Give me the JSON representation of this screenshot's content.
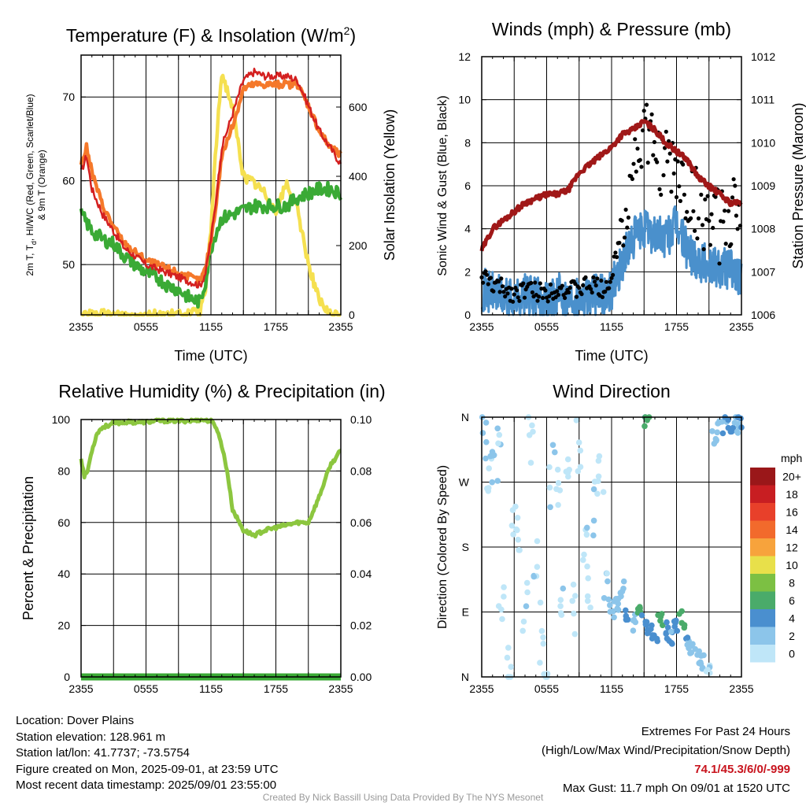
{
  "colors": {
    "t2m": "#d42020",
    "td": "#3aaa35",
    "t9m": "#f5782a",
    "insolation": "#f5e050",
    "wind": "#4a90cc",
    "gust": "#000000",
    "pressure": "#a01818",
    "rh": "#8cc63f",
    "precip": "#3aaa35"
  },
  "panels": {
    "temp": {
      "title": "Temperature (F) & Insolation (W/m",
      "title_sup": "2",
      "title_end": ")",
      "ylabel_line1": "2m T, T",
      "ylabel_sub": "d",
      "ylabel_line1_end": ", HI/WC (Red, Green, Scarlet/Blue)",
      "ylabel_line2": "& 9m T (Orange)",
      "y2label": "Solar Insolation (Yellow)",
      "xlabel": "Time (UTC)",
      "xticks": [
        "2355",
        "0555",
        "1155",
        "1755",
        "2355"
      ],
      "yticks": [
        "50",
        "60",
        "70"
      ],
      "y2ticks": [
        "0",
        "200",
        "400",
        "600"
      ]
    },
    "wind": {
      "title": "Winds (mph) & Pressure (mb)",
      "ylabel": "Sonic Wind & Gust (Blue, Black)",
      "y2label": "Station Pressure (Maroon)",
      "xlabel": "Time (UTC)",
      "xticks": [
        "2355",
        "0555",
        "1155",
        "1755",
        "2355"
      ],
      "yticks": [
        "0",
        "2",
        "4",
        "6",
        "8",
        "10",
        "12"
      ],
      "y2ticks": [
        "1006",
        "1007",
        "1008",
        "1009",
        "1010",
        "1011",
        "1012"
      ]
    },
    "rh": {
      "title": "Relative Humidity (%) & Precipitation (in)",
      "ylabel": "Percent & Precipitation",
      "xticks": [
        "2355",
        "0555",
        "1155",
        "1755",
        "2355"
      ],
      "yticks": [
        "0",
        "20",
        "40",
        "60",
        "80",
        "100"
      ],
      "y2ticks": [
        "0.00",
        "0.02",
        "0.04",
        "0.06",
        "0.08",
        "0.10"
      ]
    },
    "wdir": {
      "title": "Wind Direction",
      "ylabel": "Direction (Colored By Speed)",
      "xticks": [
        "2355",
        "0555",
        "1155",
        "1755",
        "2355"
      ],
      "yticks": [
        "N",
        "E",
        "S",
        "W",
        "N"
      ],
      "colorbar_title": "mph",
      "colorbar_labels": [
        "0",
        "2",
        "4",
        "6",
        "8",
        "10",
        "12",
        "14",
        "16",
        "18",
        "20+"
      ],
      "colorbar_colors": [
        "#bfe6f8",
        "#8cc5ea",
        "#4a8fcf",
        "#4aab6a",
        "#7cc043",
        "#e8e04a",
        "#f7a33c",
        "#f26a2c",
        "#e8402a",
        "#c81e22",
        "#9a1719"
      ]
    }
  },
  "chart_data": [
    {
      "type": "line",
      "title": "Temperature (F) & Insolation (W/m2)",
      "xlabel": "Time (UTC)",
      "ylabel": "2m T, Td, HI/WC (Red, Green, Scarlet/Blue) & 9m T (Orange)",
      "y2label": "Solar Insolation (Yellow)",
      "x_ticks": [
        "2355",
        "0555",
        "1155",
        "1755",
        "2355"
      ],
      "xlim_hours": [
        0,
        24
      ],
      "ylim": [
        44,
        75
      ],
      "y2lim": [
        0,
        750
      ],
      "x_hours": [
        0,
        0.5,
        1,
        2,
        3,
        4,
        5,
        6,
        7,
        8,
        9,
        10,
        11,
        11.5,
        12,
        12.5,
        13,
        14,
        15,
        16,
        17,
        18,
        19,
        20,
        21,
        22,
        23,
        24
      ],
      "series": [
        {
          "name": "2m T",
          "axis": "left",
          "values": [
            61,
            63,
            59,
            56,
            54,
            52,
            51,
            50,
            49.5,
            49,
            48.5,
            48,
            47.5,
            49,
            53,
            58,
            64,
            68,
            72,
            73,
            72.5,
            72.5,
            72.5,
            72,
            69,
            66,
            64,
            62
          ]
        },
        {
          "name": "9m T",
          "axis": "left",
          "values": [
            62,
            64,
            61,
            57,
            54.5,
            52.5,
            51.5,
            50.5,
            50,
            49.5,
            49,
            48.5,
            48,
            49.5,
            53,
            57.5,
            63,
            66.5,
            71,
            71.5,
            71.5,
            71.5,
            71.5,
            71.5,
            69,
            66,
            64,
            63
          ]
        },
        {
          "name": "Td",
          "axis": "left",
          "values": [
            56,
            55,
            54,
            53,
            52.5,
            51,
            50,
            49,
            48.5,
            47.5,
            47,
            46,
            45.5,
            48,
            52,
            54,
            55.5,
            56,
            56.5,
            57,
            57,
            57,
            57,
            58,
            58.5,
            59,
            59,
            58.5
          ]
        },
        {
          "name": "Insolation",
          "axis": "right",
          "values": [
            0,
            0,
            0,
            0,
            0,
            0,
            0,
            0,
            0,
            0,
            0,
            0,
            10,
            70,
            250,
            500,
            700,
            600,
            400,
            380,
            350,
            300,
            380,
            300,
            150,
            40,
            0,
            0
          ]
        }
      ]
    },
    {
      "type": "line",
      "title": "Winds (mph) & Pressure (mb)",
      "xlabel": "Time (UTC)",
      "ylabel": "Sonic Wind & Gust (Blue, Black)",
      "y2label": "Station Pressure (Maroon)",
      "x_ticks": [
        "2355",
        "0555",
        "1155",
        "1755",
        "2355"
      ],
      "xlim_hours": [
        0,
        24
      ],
      "ylim": [
        0,
        12
      ],
      "y2lim": [
        1006,
        1012
      ],
      "x_hours": [
        0,
        1,
        2,
        3,
        4,
        5,
        6,
        7,
        8,
        9,
        10,
        11,
        12,
        13,
        14,
        15,
        16,
        17,
        18,
        19,
        20,
        21,
        22,
        23,
        24
      ],
      "series": [
        {
          "name": "Sonic Wind",
          "axis": "left",
          "values": [
            1.2,
            1.0,
            0.8,
            0.7,
            0.9,
            0.8,
            0.6,
            1.0,
            0.8,
            0.9,
            1.0,
            0.9,
            1.2,
            2.5,
            3.5,
            4.0,
            3.8,
            3.5,
            4.2,
            3.0,
            2.6,
            2.3,
            2.2,
            2.2,
            1.6
          ]
        },
        {
          "name": "Gust",
          "axis": "left",
          "values": [
            1.8,
            1.4,
            1.2,
            1.0,
            1.2,
            1.1,
            1.0,
            1.3,
            1.1,
            1.2,
            1.4,
            1.2,
            1.6,
            4.5,
            7.0,
            8.5,
            7.5,
            7.0,
            6.5,
            5.5,
            5.0,
            4.5,
            4.0,
            5.0,
            4.0
          ]
        },
        {
          "name": "Station Pressure",
          "axis": "right",
          "values": [
            1007.5,
            1008.0,
            1008.2,
            1008.4,
            1008.6,
            1008.7,
            1008.8,
            1008.8,
            1008.9,
            1009.3,
            1009.5,
            1009.7,
            1009.9,
            1010.2,
            1010.3,
            1010.5,
            1010.3,
            1010.0,
            1009.8,
            1009.6,
            1009.2,
            1009.0,
            1008.8,
            1008.6,
            1008.6
          ]
        }
      ]
    },
    {
      "type": "line",
      "title": "Relative Humidity (%) & Precipitation (in)",
      "ylabel": "Percent & Precipitation",
      "x_ticks": [
        "2355",
        "0555",
        "1155",
        "1755",
        "2355"
      ],
      "xlim_hours": [
        0,
        24
      ],
      "ylim": [
        0,
        100
      ],
      "y2lim": [
        0,
        0.1
      ],
      "x_hours": [
        0,
        0.3,
        0.6,
        1,
        1.5,
        2,
        3,
        4,
        5,
        6,
        7,
        8,
        9,
        10,
        11,
        12,
        12.5,
        13,
        13.5,
        14,
        15,
        16,
        17,
        18,
        19,
        20,
        21,
        22,
        23,
        24
      ],
      "series": [
        {
          "name": "Relative Humidity",
          "axis": "left",
          "values": [
            85,
            78,
            80,
            88,
            95,
            97,
            98.5,
            99,
            99,
            99,
            99.5,
            99.5,
            99.5,
            99.5,
            100,
            99.5,
            97,
            90,
            80,
            65,
            57,
            55,
            57,
            58,
            59,
            60,
            60,
            70,
            82,
            88
          ]
        },
        {
          "name": "Precipitation",
          "axis": "right",
          "values": [
            0,
            0,
            0,
            0,
            0,
            0,
            0,
            0,
            0,
            0,
            0,
            0,
            0,
            0,
            0,
            0,
            0,
            0,
            0,
            0,
            0,
            0,
            0,
            0,
            0,
            0,
            0,
            0,
            0,
            0
          ]
        }
      ]
    },
    {
      "type": "scatter",
      "title": "Wind Direction",
      "ylabel": "Direction (Colored By Speed)",
      "x_ticks": [
        "2355",
        "0555",
        "1155",
        "1755",
        "2355"
      ],
      "y_ticks": [
        "N",
        "E",
        "S",
        "W",
        "N"
      ],
      "xlim_hours": [
        0,
        24
      ],
      "ylim_deg": [
        0,
        360
      ],
      "colorbar": {
        "title": "mph",
        "labels": [
          "0",
          "2",
          "4",
          "6",
          "8",
          "10",
          "12",
          "14",
          "16",
          "18",
          "20+"
        ]
      },
      "points": [
        {
          "t": 0.3,
          "dir": 340,
          "spd": 1.5
        },
        {
          "t": 0.7,
          "dir": 300,
          "spd": 0.5
        },
        {
          "t": 1.0,
          "dir": 270,
          "spd": 1.2
        },
        {
          "t": 1.5,
          "dir": 310,
          "spd": 0.8
        },
        {
          "t": 1.8,
          "dir": 110,
          "spd": 0.5
        },
        {
          "t": 2.5,
          "dir": 5,
          "spd": 0.5
        },
        {
          "t": 3.0,
          "dir": 240,
          "spd": 0.8
        },
        {
          "t": 3.5,
          "dir": 200,
          "spd": 0.5
        },
        {
          "t": 4.0,
          "dir": 90,
          "spd": 0.7
        },
        {
          "t": 4.5,
          "dir": 330,
          "spd": 0.5
        },
        {
          "t": 5.0,
          "dir": 150,
          "spd": 0.8
        },
        {
          "t": 5.5,
          "dir": 60,
          "spd": 0.6
        },
        {
          "t": 6.0,
          "dir": 5,
          "spd": 0.3
        },
        {
          "t": 6.5,
          "dir": 280,
          "spd": 1.0
        },
        {
          "t": 7.0,
          "dir": 250,
          "spd": 0.8
        },
        {
          "t": 7.5,
          "dir": 120,
          "spd": 0.8
        },
        {
          "t": 8.0,
          "dir": 300,
          "spd": 0.6
        },
        {
          "t": 8.5,
          "dir": 95,
          "spd": 0.7
        },
        {
          "t": 9.0,
          "dir": 330,
          "spd": 0.9
        },
        {
          "t": 9.5,
          "dir": 180,
          "spd": 0.6
        },
        {
          "t": 10.0,
          "dir": 110,
          "spd": 0.5
        },
        {
          "t": 10.5,
          "dir": 240,
          "spd": 1.0
        },
        {
          "t": 11.0,
          "dir": 300,
          "spd": 0.7
        },
        {
          "t": 11.5,
          "dir": 125,
          "spd": 1.2
        },
        {
          "t": 12.0,
          "dir": 95,
          "spd": 1.5
        },
        {
          "t": 12.5,
          "dir": 100,
          "spd": 2.5
        },
        {
          "t": 13.0,
          "dir": 120,
          "spd": 2.2
        },
        {
          "t": 13.5,
          "dir": 90,
          "spd": 3.5
        },
        {
          "t": 14.0,
          "dir": 75,
          "spd": 3.0
        },
        {
          "t": 14.5,
          "dir": 85,
          "spd": 5.5
        },
        {
          "t": 15.0,
          "dir": 82,
          "spd": 4.5
        },
        {
          "t": 15.3,
          "dir": 355,
          "spd": 5.0
        },
        {
          "t": 15.5,
          "dir": 70,
          "spd": 4.0
        },
        {
          "t": 16.0,
          "dir": 60,
          "spd": 3.8
        },
        {
          "t": 16.5,
          "dir": 80,
          "spd": 6.5
        },
        {
          "t": 17.0,
          "dir": 65,
          "spd": 3.5
        },
        {
          "t": 17.5,
          "dir": 55,
          "spd": 3.0
        },
        {
          "t": 18.0,
          "dir": 70,
          "spd": 3.2
        },
        {
          "t": 18.5,
          "dir": 80,
          "spd": 6.0
        },
        {
          "t": 19.0,
          "dir": 50,
          "spd": 3.0
        },
        {
          "t": 19.5,
          "dir": 40,
          "spd": 2.5
        },
        {
          "t": 20.0,
          "dir": 30,
          "spd": 2.0
        },
        {
          "t": 20.5,
          "dir": 20,
          "spd": 2.2
        },
        {
          "t": 21.0,
          "dir": 5,
          "spd": 1.0
        },
        {
          "t": 21.5,
          "dir": 330,
          "spd": 2.0
        },
        {
          "t": 22.0,
          "dir": 345,
          "spd": 1.8
        },
        {
          "t": 22.5,
          "dir": 350,
          "spd": 3.0
        },
        {
          "t": 23.0,
          "dir": 352,
          "spd": 3.5
        },
        {
          "t": 23.5,
          "dir": 350,
          "spd": 2.5
        },
        {
          "t": 23.8,
          "dir": 352,
          "spd": 3.0
        }
      ]
    }
  ],
  "footer": {
    "location": "Location: Dover Plains",
    "elevation": "Station elevation: 128.961 m",
    "latlon": "Station lat/lon: 41.7737; -73.5754",
    "created": "Figure created on Mon, 2025-09-01, at 23:59 UTC",
    "recent": "Most recent data timestamp: 2025/09/01 23:55:00",
    "extremes_title": "Extremes For Past 24 Hours",
    "extremes_subtitle": "(High/Low/Max Wind/Precipitation/Snow Depth)",
    "extremes_values": "74.1/45.3/6/0/-999",
    "max_gust": "Max Gust: 11.7 mph On 09/01 at 1520 UTC",
    "credit": "Created By Nick Bassill Using Data Provided By The NYS Mesonet"
  }
}
